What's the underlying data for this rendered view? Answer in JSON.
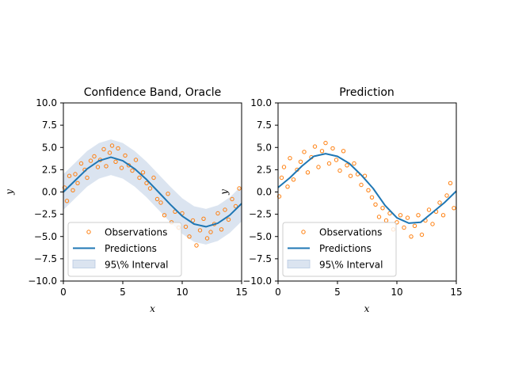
{
  "chart_data": [
    {
      "type": "scatter",
      "title": "Confidence Band, Oracle",
      "xlabel": "x",
      "ylabel": "y",
      "xlim": [
        0,
        15
      ],
      "ylim": [
        -10,
        10
      ],
      "xticks": [
        "0",
        "5",
        "10",
        "15"
      ],
      "yticks": [
        "−10.0",
        "−7.5",
        "−5.0",
        "−2.5",
        "0.0",
        "2.5",
        "5.0",
        "7.5",
        "10.0"
      ],
      "legend_position": "lower-left",
      "legend": [
        "Observations",
        "Predictions",
        "95\\% Interval"
      ],
      "prediction": {
        "x": [
          0,
          1,
          2,
          3,
          4,
          5,
          6,
          7,
          8,
          9,
          10,
          11,
          12,
          13,
          14,
          15
        ],
        "y": [
          0,
          1.3,
          2.6,
          3.5,
          3.9,
          3.5,
          2.6,
          1.4,
          0,
          -1.4,
          -2.7,
          -3.6,
          -3.9,
          -3.5,
          -2.6,
          -1.3
        ]
      },
      "interval": {
        "x": [
          0,
          1,
          2,
          3,
          4,
          5,
          6,
          7,
          8,
          9,
          10,
          11,
          12,
          13,
          14,
          15
        ],
        "lower": [
          -2,
          -0.7,
          0.6,
          1.5,
          1.9,
          1.5,
          0.6,
          -0.6,
          -2,
          -3.4,
          -4.7,
          -5.6,
          -5.9,
          -5.5,
          -4.6,
          -3.3
        ],
        "upper": [
          2,
          3.3,
          4.6,
          5.5,
          5.9,
          5.5,
          4.6,
          3.4,
          2,
          0.6,
          -0.7,
          -1.6,
          -1.9,
          -1.5,
          -0.6,
          0.7
        ]
      },
      "observations": {
        "x": [
          0.1,
          0.3,
          0.5,
          0.8,
          1.0,
          1.2,
          1.5,
          1.8,
          2.0,
          2.3,
          2.6,
          2.9,
          3.1,
          3.4,
          3.6,
          3.9,
          4.1,
          4.4,
          4.6,
          4.9,
          5.2,
          5.5,
          5.8,
          6.1,
          6.4,
          6.7,
          7.0,
          7.3,
          7.6,
          7.9,
          8.2,
          8.5,
          8.8,
          9.1,
          9.4,
          9.7,
          10.0,
          10.3,
          10.6,
          10.9,
          11.2,
          11.5,
          11.8,
          12.1,
          12.4,
          12.7,
          13.0,
          13.3,
          13.6,
          13.9,
          14.2,
          14.5,
          14.8
        ],
        "y": [
          0.5,
          -1.0,
          1.8,
          0.2,
          2.0,
          1.0,
          3.2,
          2.5,
          1.6,
          3.5,
          4.0,
          2.8,
          3.6,
          4.8,
          2.9,
          4.4,
          5.2,
          3.4,
          4.9,
          2.7,
          4.1,
          3.0,
          2.4,
          3.6,
          1.6,
          2.2,
          1.0,
          0.4,
          1.6,
          -0.8,
          -1.2,
          -2.6,
          -0.2,
          -3.4,
          -2.2,
          -4.0,
          -2.4,
          -3.9,
          -5.0,
          -3.2,
          -6.0,
          -4.3,
          -3.0,
          -5.2,
          -4.5,
          -3.6,
          -2.4,
          -4.2,
          -2.0,
          -3.1,
          -0.8,
          -1.6,
          0.4
        ]
      }
    },
    {
      "type": "scatter",
      "title": "Prediction",
      "xlabel": "x",
      "ylabel": "y",
      "xlim": [
        0,
        15
      ],
      "ylim": [
        -10,
        10
      ],
      "xticks": [
        "0",
        "5",
        "10",
        "15"
      ],
      "yticks": [
        "−10.0",
        "−7.5",
        "−5.0",
        "−2.5",
        "0.0",
        "2.5",
        "5.0",
        "7.5",
        "10.0"
      ],
      "legend_position": "lower-left",
      "legend": [
        "Observations",
        "Predictions",
        "95\\% Interval"
      ],
      "prediction": {
        "x": [
          0,
          1,
          2,
          3,
          4,
          5,
          6,
          7,
          8,
          9,
          10,
          11,
          12,
          13,
          14,
          15
        ],
        "y": [
          0.5,
          1.6,
          2.9,
          4.0,
          4.3,
          4.0,
          3.2,
          1.9,
          0.4,
          -1.5,
          -2.9,
          -3.5,
          -3.4,
          -2.3,
          -1.2,
          0.1
        ]
      },
      "observations": {
        "x": [
          0.1,
          0.3,
          0.5,
          0.8,
          1.0,
          1.3,
          1.6,
          1.9,
          2.2,
          2.5,
          2.8,
          3.1,
          3.4,
          3.7,
          4.0,
          4.3,
          4.6,
          4.9,
          5.2,
          5.5,
          5.8,
          6.1,
          6.4,
          6.7,
          7.0,
          7.3,
          7.6,
          7.9,
          8.2,
          8.5,
          8.8,
          9.1,
          9.4,
          9.7,
          10.0,
          10.3,
          10.6,
          10.9,
          11.2,
          11.5,
          11.8,
          12.1,
          12.4,
          12.7,
          13.0,
          13.3,
          13.6,
          13.9,
          14.2,
          14.5,
          14.8
        ],
        "y": [
          -0.5,
          1.6,
          2.8,
          0.6,
          3.8,
          1.4,
          2.5,
          3.4,
          4.5,
          2.2,
          3.9,
          5.1,
          2.8,
          4.6,
          5.5,
          3.2,
          4.9,
          3.6,
          2.4,
          4.6,
          3.0,
          1.8,
          3.2,
          2.0,
          0.8,
          1.8,
          0.2,
          -0.6,
          -1.4,
          -2.8,
          -1.8,
          -3.2,
          -2.4,
          -4.2,
          -3.4,
          -2.6,
          -4.0,
          -2.9,
          -5.0,
          -3.8,
          -2.6,
          -4.8,
          -3.2,
          -2.0,
          -3.6,
          -2.2,
          -1.2,
          -2.6,
          -0.4,
          1.0,
          -1.8
        ]
      }
    }
  ]
}
